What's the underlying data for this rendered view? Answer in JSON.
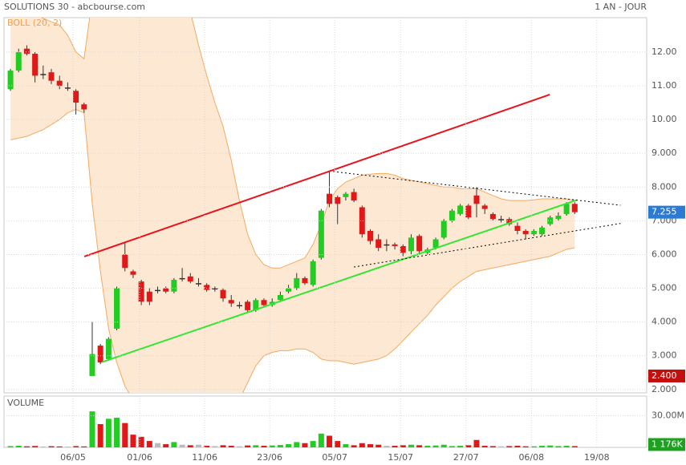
{
  "chart_data": {
    "type": "candlestick",
    "title": "SOLUTIONS 30 - abcbourse.com",
    "period": "1 AN - JOUR",
    "indicator": "BOLL (20, 2)",
    "volume_title": "VOLUME",
    "up_color": "#22cc22",
    "down_color": "#e01818",
    "flat_color": "#333333",
    "band_color": "#f4a95e",
    "band_fill": "#fde8d4",
    "grid": true,
    "xlim": [
      -0.79,
      77.8
    ],
    "xticks": [
      {
        "value": 7.65,
        "label": "06/05"
      },
      {
        "value": 15.8,
        "label": "01/06"
      },
      {
        "value": 23.75,
        "label": "11/06"
      },
      {
        "value": 31.7,
        "label": "23/06"
      },
      {
        "value": 39.65,
        "label": "05/07"
      },
      {
        "value": 47.7,
        "label": "15/07"
      },
      {
        "value": 55.7,
        "label": "27/07"
      },
      {
        "value": 63.7,
        "label": "06/08"
      },
      {
        "value": 71.7,
        "label": "19/08"
      }
    ],
    "ylim": [
      1.9,
      13.02
    ],
    "yticks": [
      {
        "value": 12,
        "label": "12.00"
      },
      {
        "value": 11,
        "label": "11.00"
      },
      {
        "value": 10,
        "label": "10.00"
      },
      {
        "value": 9,
        "label": "9.000"
      },
      {
        "value": 8,
        "label": "8.000"
      },
      {
        "value": 7,
        "label": "7.000"
      },
      {
        "value": 6,
        "label": "6.000"
      },
      {
        "value": 5,
        "label": "5.000"
      },
      {
        "value": 4,
        "label": "4.000"
      },
      {
        "value": 3,
        "label": "3.000"
      },
      {
        "value": 2,
        "label": "2.000"
      }
    ],
    "open": [
      10.9,
      11.45,
      12.1,
      11.95,
      11.35,
      11.4,
      11.15,
      10.95,
      10.85,
      10.45,
      2.4,
      3.3,
      2.9,
      3.8,
      6.0,
      5.5,
      5.2,
      4.9,
      4.95,
      5.0,
      4.9,
      5.3,
      5.35,
      5.15,
      5.1,
      5.0,
      4.95,
      4.65,
      4.5,
      4.6,
      4.35,
      4.65,
      4.5,
      4.65,
      4.9,
      5.0,
      5.3,
      5.1,
      5.9,
      7.8,
      7.7,
      7.7,
      7.85,
      7.4,
      6.7,
      6.45,
      6.3,
      6.3,
      6.25,
      6.1,
      6.55,
      6.05,
      6.2,
      6.5,
      7.0,
      7.2,
      7.45,
      7.75,
      7.45,
      7.2,
      7.05,
      7.05,
      6.85,
      6.7,
      6.6,
      6.6,
      6.9,
      7.05,
      7.2,
      7.5
    ],
    "high": [
      11.5,
      12.1,
      12.2,
      12.0,
      11.6,
      11.5,
      11.3,
      11.1,
      10.9,
      10.5,
      4.0,
      3.35,
      3.55,
      5.05,
      6.35,
      5.55,
      5.25,
      5.0,
      5.05,
      5.05,
      5.3,
      5.6,
      5.45,
      5.3,
      5.15,
      5.05,
      5.0,
      4.8,
      4.6,
      4.65,
      4.7,
      4.7,
      4.7,
      4.9,
      5.1,
      5.45,
      5.35,
      5.85,
      7.35,
      8.45,
      7.75,
      7.85,
      7.95,
      7.45,
      6.75,
      6.6,
      6.45,
      6.35,
      6.3,
      6.6,
      6.6,
      6.2,
      6.5,
      7.05,
      7.35,
      7.5,
      7.5,
      8.0,
      7.5,
      7.25,
      7.15,
      7.1,
      6.95,
      6.75,
      6.75,
      6.85,
      7.15,
      7.25,
      7.55,
      7.55
    ],
    "low": [
      10.85,
      11.4,
      11.9,
      11.1,
      11.2,
      11.05,
      10.9,
      10.85,
      10.15,
      10.2,
      2.4,
      2.75,
      2.85,
      3.75,
      5.5,
      5.3,
      4.5,
      4.5,
      4.85,
      4.85,
      4.85,
      5.2,
      5.15,
      5.05,
      4.9,
      4.9,
      4.6,
      4.45,
      4.4,
      4.3,
      4.3,
      4.45,
      4.45,
      4.6,
      4.85,
      4.95,
      5.1,
      5.05,
      5.85,
      7.4,
      6.9,
      7.6,
      7.55,
      6.5,
      6.3,
      6.1,
      6.1,
      6.15,
      5.95,
      6.0,
      6.0,
      6.0,
      6.15,
      6.45,
      6.95,
      7.15,
      7.05,
      7.1,
      7.2,
      7.0,
      6.95,
      6.85,
      6.6,
      6.45,
      6.55,
      6.55,
      6.85,
      7.0,
      7.15,
      7.2
    ],
    "close": [
      11.45,
      12.0,
      11.95,
      11.3,
      11.35,
      11.15,
      11.0,
      10.95,
      10.5,
      10.3,
      3.05,
      2.8,
      3.5,
      5.0,
      5.6,
      5.4,
      4.6,
      4.6,
      4.95,
      4.9,
      5.25,
      5.3,
      5.2,
      5.15,
      4.95,
      5.0,
      4.7,
      4.55,
      4.5,
      4.35,
      4.65,
      4.5,
      4.6,
      4.8,
      5.0,
      5.3,
      5.15,
      5.8,
      7.3,
      7.5,
      7.5,
      7.8,
      7.6,
      6.6,
      6.4,
      6.2,
      6.3,
      6.25,
      6.05,
      6.5,
      6.1,
      6.15,
      6.45,
      7.0,
      7.3,
      7.45,
      7.1,
      7.5,
      7.35,
      7.05,
      7.05,
      6.9,
      6.7,
      6.6,
      6.7,
      6.8,
      7.1,
      7.15,
      7.5,
      7.255
    ],
    "bollinger": {
      "upper": [
        13.3,
        13.3,
        13.2,
        13.1,
        13.0,
        12.9,
        12.8,
        12.5,
        12.0,
        11.8,
        13.6,
        14.5,
        15.2,
        15.6,
        15.8,
        15.8,
        15.6,
        15.3,
        15.0,
        14.6,
        14.2,
        13.7,
        13.2,
        12.2,
        11.3,
        10.5,
        9.8,
        8.8,
        7.6,
        6.6,
        6.0,
        5.7,
        5.6,
        5.6,
        5.7,
        5.8,
        5.9,
        6.3,
        6.9,
        7.6,
        7.95,
        8.15,
        8.25,
        8.35,
        8.38,
        8.4,
        8.4,
        8.35,
        8.25,
        8.2,
        8.15,
        8.1,
        8.05,
        8.0,
        8.0,
        7.95,
        7.95,
        7.95,
        7.85,
        7.75,
        7.65,
        7.6,
        7.6,
        7.6,
        7.62,
        7.65,
        7.65,
        7.65,
        7.65,
        7.6
      ],
      "lower": [
        9.4,
        9.45,
        9.5,
        9.6,
        9.7,
        9.85,
        10.0,
        10.2,
        10.3,
        10.2,
        7.5,
        5.5,
        3.8,
        2.8,
        2.1,
        1.7,
        1.3,
        1.0,
        0.9,
        0.8,
        0.8,
        0.8,
        0.8,
        0.9,
        1.0,
        1.1,
        1.2,
        1.4,
        1.7,
        2.2,
        2.7,
        3.0,
        3.1,
        3.15,
        3.15,
        3.2,
        3.2,
        3.1,
        2.9,
        2.85,
        2.85,
        2.8,
        2.75,
        2.8,
        2.85,
        2.9,
        3.0,
        3.2,
        3.45,
        3.7,
        3.95,
        4.2,
        4.5,
        4.75,
        5.0,
        5.2,
        5.35,
        5.5,
        5.55,
        5.6,
        5.65,
        5.7,
        5.75,
        5.8,
        5.85,
        5.9,
        5.95,
        6.05,
        6.15,
        6.2
      ]
    },
    "trendlines": [
      {
        "color": "#e8141b",
        "dashed": false,
        "x": [
          9.03,
          65.95
        ],
        "y": [
          5.94,
          10.74
        ]
      },
      {
        "color": "#33e633",
        "dashed": false,
        "x": [
          11.19,
          69.2
        ],
        "y": [
          2.81,
          7.61
        ]
      },
      {
        "color": "#000000",
        "dashed": true,
        "x": [
          39.45,
          74.6
        ],
        "y": [
          8.46,
          7.46
        ]
      },
      {
        "color": "#000000",
        "dashed": true,
        "x": [
          42.0,
          74.6
        ],
        "y": [
          5.63,
          6.92
        ]
      }
    ],
    "last_price": {
      "value": 7.255,
      "label": "7.255",
      "color": "#2b7bd4"
    },
    "min_price": {
      "value": 2.4,
      "label": "2.400",
      "color": "#c40f0f"
    },
    "volume": [
      1.2,
      1.5,
      1.0,
      1.3,
      0.8,
      1.1,
      0.9,
      0.7,
      1.2,
      0.9,
      34,
      22,
      27,
      28,
      23,
      12,
      10,
      6,
      4,
      3,
      5,
      2.5,
      2,
      2.5,
      1.5,
      1.2,
      2,
      1.5,
      1,
      1.8,
      2,
      1.5,
      1.8,
      2.2,
      3,
      5,
      4,
      6,
      13,
      11,
      6,
      3,
      2,
      4,
      3,
      2.5,
      1.5,
      1.5,
      2,
      2.5,
      2,
      1.5,
      1.8,
      2.5,
      1.2,
      1.5,
      2,
      7,
      1.5,
      1.2,
      1,
      1.2,
      1.5,
      1,
      1,
      1.5,
      1.8,
      1.2,
      1.5,
      1.176
    ],
    "vlim": [
      0,
      48.5
    ],
    "vticks": [
      {
        "value": 30,
        "label": "30.00M"
      }
    ],
    "last_volume": {
      "value": 1.176,
      "label": "1 176K",
      "color": "#1ea11e"
    }
  }
}
